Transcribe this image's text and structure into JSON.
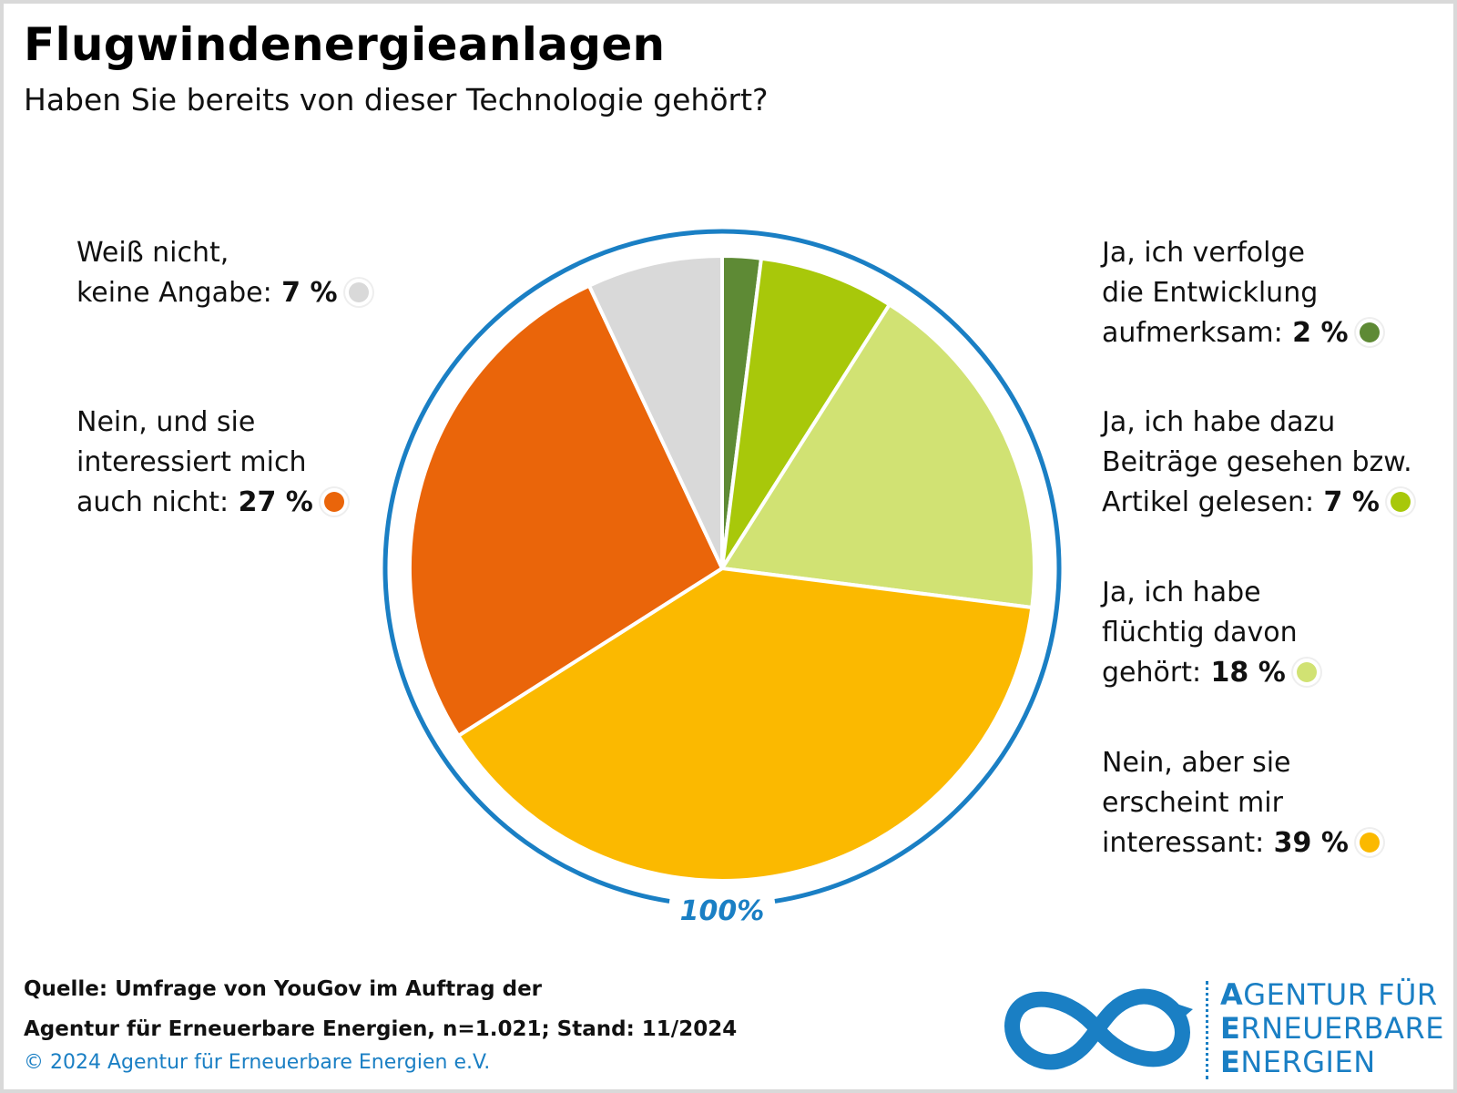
{
  "title": "Flugwindenergieanlagen",
  "subtitle": "Haben Sie bereits von dieser Technologie gehört?",
  "total_label": "100%",
  "colors": {
    "ring": "#1a7fc4",
    "separator": "#ffffff"
  },
  "chart_data": {
    "type": "pie",
    "title": "Flugwindenergieanlagen",
    "subtitle": "Haben Sie bereits von dieser Technologie gehört?",
    "total": "100%",
    "slices": [
      {
        "label": "Ja, ich verfolge die Entwicklung aufmerksam:",
        "lines": [
          "Ja, ich verfolge",
          "die Entwicklung",
          "aufmerksam:"
        ],
        "value": 2,
        "display": "2 %",
        "color": "#5e8a35"
      },
      {
        "label": "Ja, ich habe dazu Beiträge gesehen bzw. Artikel gelesen:",
        "lines": [
          "Ja, ich habe dazu",
          "Beiträge gesehen bzw.",
          "Artikel gelesen:"
        ],
        "value": 7,
        "display": "7 %",
        "color": "#a8c80a"
      },
      {
        "label": "Ja, ich habe flüchtig davon gehört:",
        "lines": [
          "Ja, ich habe",
          "flüchtig davon",
          "gehört:"
        ],
        "value": 18,
        "display": "18 %",
        "color": "#d1e273"
      },
      {
        "label": "Nein, aber sie erscheint mir interessant:",
        "lines": [
          "Nein, aber sie",
          "erscheint mir",
          "interessant:"
        ],
        "value": 39,
        "display": "39 %",
        "color": "#fbb900"
      },
      {
        "label": "Nein, und sie interessiert mich auch nicht:",
        "lines": [
          "Nein, und sie",
          "interessiert mich",
          "auch nicht:"
        ],
        "value": 27,
        "display": "27 %",
        "color": "#ea650a"
      },
      {
        "label": "Weiß nicht, keine Angabe:",
        "lines": [
          "Weiß nicht,",
          "keine Angabe:"
        ],
        "value": 7,
        "display": "7 %",
        "color": "#d9d9d9"
      }
    ]
  },
  "source": {
    "line1": "Quelle: Umfrage von YouGov im Auftrag der",
    "line2": "Agentur für Erneuerbare Energien, n=1.021; Stand: 11/2024"
  },
  "copyright": "© 2024 Agentur für Erneuerbare Energien e.V.",
  "logo": {
    "icon": "infinity-arrow-icon",
    "line1_initial": "A",
    "line1_rest": "GENTUR FÜR",
    "line2_initial": "E",
    "line2_rest": "RNEUERBARE",
    "line3_initial": "E",
    "line3_rest": "NERGIEN"
  }
}
